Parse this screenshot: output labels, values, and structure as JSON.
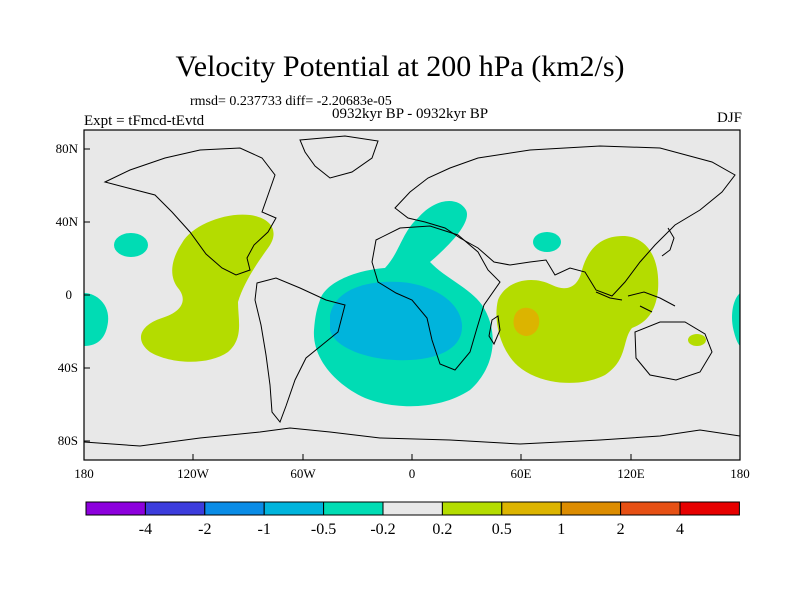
{
  "title": "Velocity Potential at 200 hPa (km2/s)",
  "stats": "rmsd= 0.237733  diff= -2.20683e-05",
  "subtitle": "0932kyr BP - 0932kyr BP",
  "experiment": "Expt = tFmcd-tEvtd",
  "season": "DJF",
  "colors": {
    "ocean_bg": "#e8e8e8",
    "neg_strong": "#00b4dc",
    "neg_weak": "#00dcb4",
    "pos_weak": "#b4dc00",
    "pos_mid": "#dcb400"
  },
  "map": {
    "lat_ticks": [
      "80N",
      "40N",
      "0",
      "40S",
      "80S"
    ],
    "lon_ticks": [
      "180",
      "120W",
      "60W",
      "0",
      "60E",
      "120E",
      "180"
    ]
  },
  "colorbar": {
    "colors": [
      "#8c00dc",
      "#3c3cdc",
      "#0a8ce6",
      "#00b4dc",
      "#00dcb4",
      "#e8e8e8",
      "#b4dc00",
      "#dcb400",
      "#dc8c00",
      "#e65014",
      "#e60000"
    ],
    "labels": [
      "-4",
      "-2",
      "-1",
      "-0.5",
      "-0.2",
      "0.2",
      "0.5",
      "1",
      "2",
      "4"
    ]
  }
}
